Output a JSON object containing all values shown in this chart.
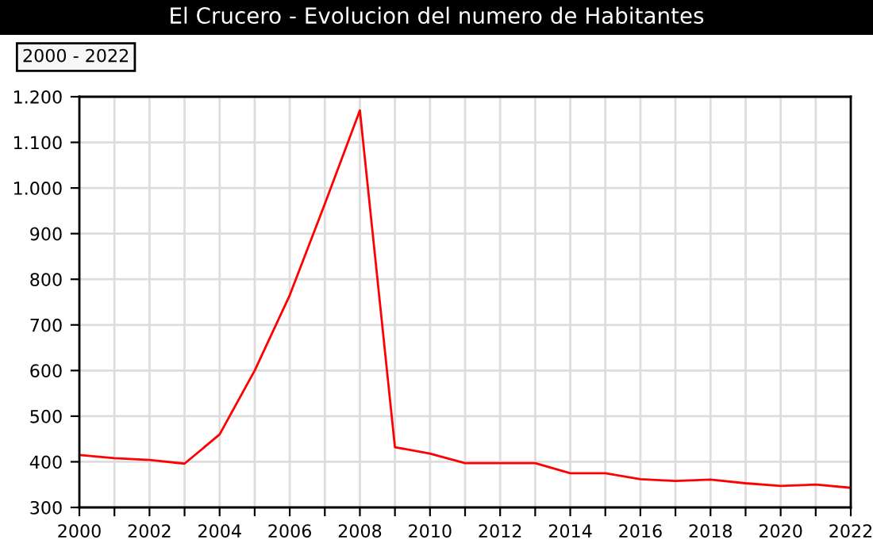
{
  "chart_data": {
    "type": "line",
    "title": "El Crucero - Evolucion del numero de Habitantes",
    "subtitle": "2000 - 2022",
    "x": [
      2000,
      2001,
      2002,
      2003,
      2004,
      2005,
      2006,
      2007,
      2008,
      2009,
      2010,
      2011,
      2012,
      2013,
      2014,
      2015,
      2016,
      2017,
      2018,
      2019,
      2020,
      2021,
      2022
    ],
    "series": [
      {
        "color": "#ff0000",
        "values": [
          415,
          408,
          404,
          396,
          460,
          600,
          765,
          965,
          1170,
          432,
          418,
          397,
          397,
          397,
          375,
          375,
          362,
          358,
          361,
          353,
          347,
          350,
          343
        ]
      }
    ],
    "xlim": [
      2000,
      2022
    ],
    "xticks": [
      2000,
      {
        "value": 2001,
        "label": null
      },
      2002,
      {
        "value": 2003,
        "label": null
      },
      2004,
      {
        "value": 2005,
        "label": null
      },
      2006,
      {
        "value": 2007,
        "label": null
      },
      2008,
      {
        "value": 2009,
        "label": null
      },
      2010,
      {
        "value": 2011,
        "label": null
      },
      2012,
      {
        "value": 2013,
        "label": null
      },
      2014,
      {
        "value": 2015,
        "label": null
      },
      2016,
      {
        "value": 2017,
        "label": null
      },
      2018,
      {
        "value": 2019,
        "label": null
      },
      2020,
      {
        "value": 2021,
        "label": null
      },
      2022
    ],
    "ylim": [
      300,
      1200
    ],
    "yticks": [
      300,
      400,
      500,
      600,
      700,
      800,
      900,
      {
        "value": 1000,
        "label": "1.000"
      },
      {
        "value": 1100,
        "label": "1.100"
      },
      {
        "value": 1200,
        "label": "1.200"
      }
    ],
    "grid": true,
    "marker": "none",
    "line_style": "solid"
  }
}
